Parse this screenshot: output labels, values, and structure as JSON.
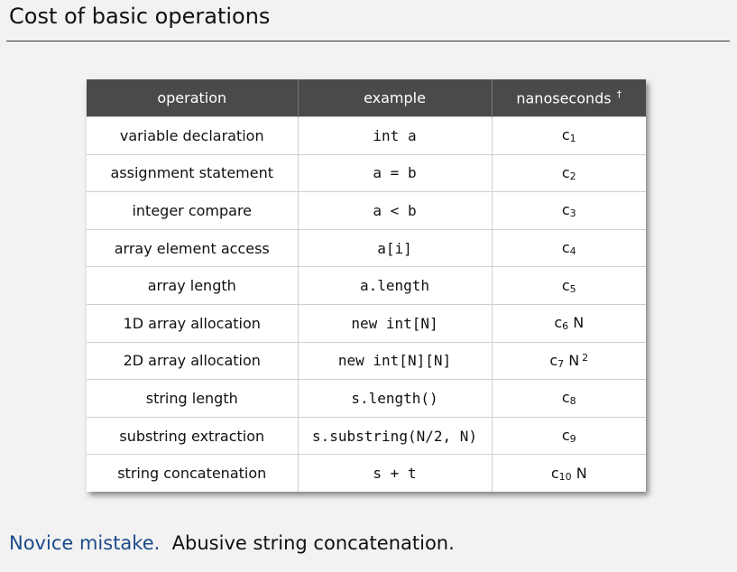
{
  "title": "Cost of basic operations",
  "table": {
    "headers": {
      "operation": "operation",
      "example": "example",
      "nanoseconds": "nanoseconds",
      "dagger": "†"
    },
    "rows": [
      {
        "operation": "variable declaration",
        "example": "int a",
        "cost": {
          "base": "c",
          "sub": "1",
          "n": "",
          "sup": ""
        }
      },
      {
        "operation": "assignment statement",
        "example": "a = b",
        "cost": {
          "base": "c",
          "sub": "2",
          "n": "",
          "sup": ""
        }
      },
      {
        "operation": "integer compare",
        "example": "a < b",
        "cost": {
          "base": "c",
          "sub": "3",
          "n": "",
          "sup": ""
        }
      },
      {
        "operation": "array element access",
        "example": "a[i]",
        "cost": {
          "base": "c",
          "sub": "4",
          "n": "",
          "sup": ""
        }
      },
      {
        "operation": "array length",
        "example": "a.length",
        "cost": {
          "base": "c",
          "sub": "5",
          "n": "",
          "sup": ""
        }
      },
      {
        "operation": "1D array allocation",
        "example": "new int[N]",
        "cost": {
          "base": "c",
          "sub": "6",
          "n": "N",
          "sup": ""
        }
      },
      {
        "operation": "2D array allocation",
        "example": "new int[N][N]",
        "cost": {
          "base": "c",
          "sub": "7",
          "n": "N",
          "sup": "2"
        }
      },
      {
        "operation": "string length",
        "example": "s.length()",
        "cost": {
          "base": "c",
          "sub": "8",
          "n": "",
          "sup": ""
        }
      },
      {
        "operation": "substring extraction",
        "example": "s.substring(N/2, N)",
        "cost": {
          "base": "c",
          "sub": "9",
          "n": "",
          "sup": ""
        }
      },
      {
        "operation": "string concatenation",
        "example": "s + t",
        "cost": {
          "base": "c",
          "sub": "10",
          "n": "N",
          "sup": ""
        }
      }
    ]
  },
  "note": {
    "emphasis": "Novice mistake.",
    "text": "Abusive string concatenation."
  },
  "colors": {
    "header_bg": "#4a4a4a",
    "emphasis": "#1c4a8a",
    "background": "#f2f2f2"
  }
}
